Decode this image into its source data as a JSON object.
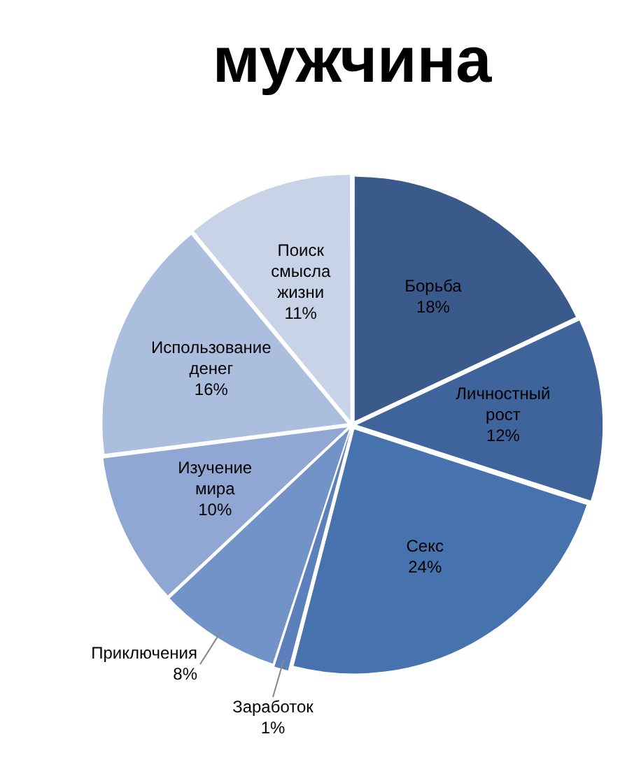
{
  "chart_data": {
    "type": "pie",
    "title": "мужчина",
    "categories": [
      "Борьба",
      "Личностный рост",
      "Секс",
      "Заработок",
      "Приключения",
      "Изучение мира",
      "Использование денег",
      "Поиск смысла жизни"
    ],
    "values": [
      18,
      12,
      24,
      1,
      8,
      10,
      16,
      11
    ],
    "value_labels": [
      "18%",
      "12%",
      "24%",
      "1%",
      "8%",
      "10%",
      "16%",
      "11%"
    ],
    "colors": [
      "#3b5a8c",
      "#3f649b",
      "#4672ad",
      "#5b80bb",
      "#7193c8",
      "#8fa7d2",
      "#abbede",
      "#c8d3e8"
    ],
    "legend": false
  }
}
